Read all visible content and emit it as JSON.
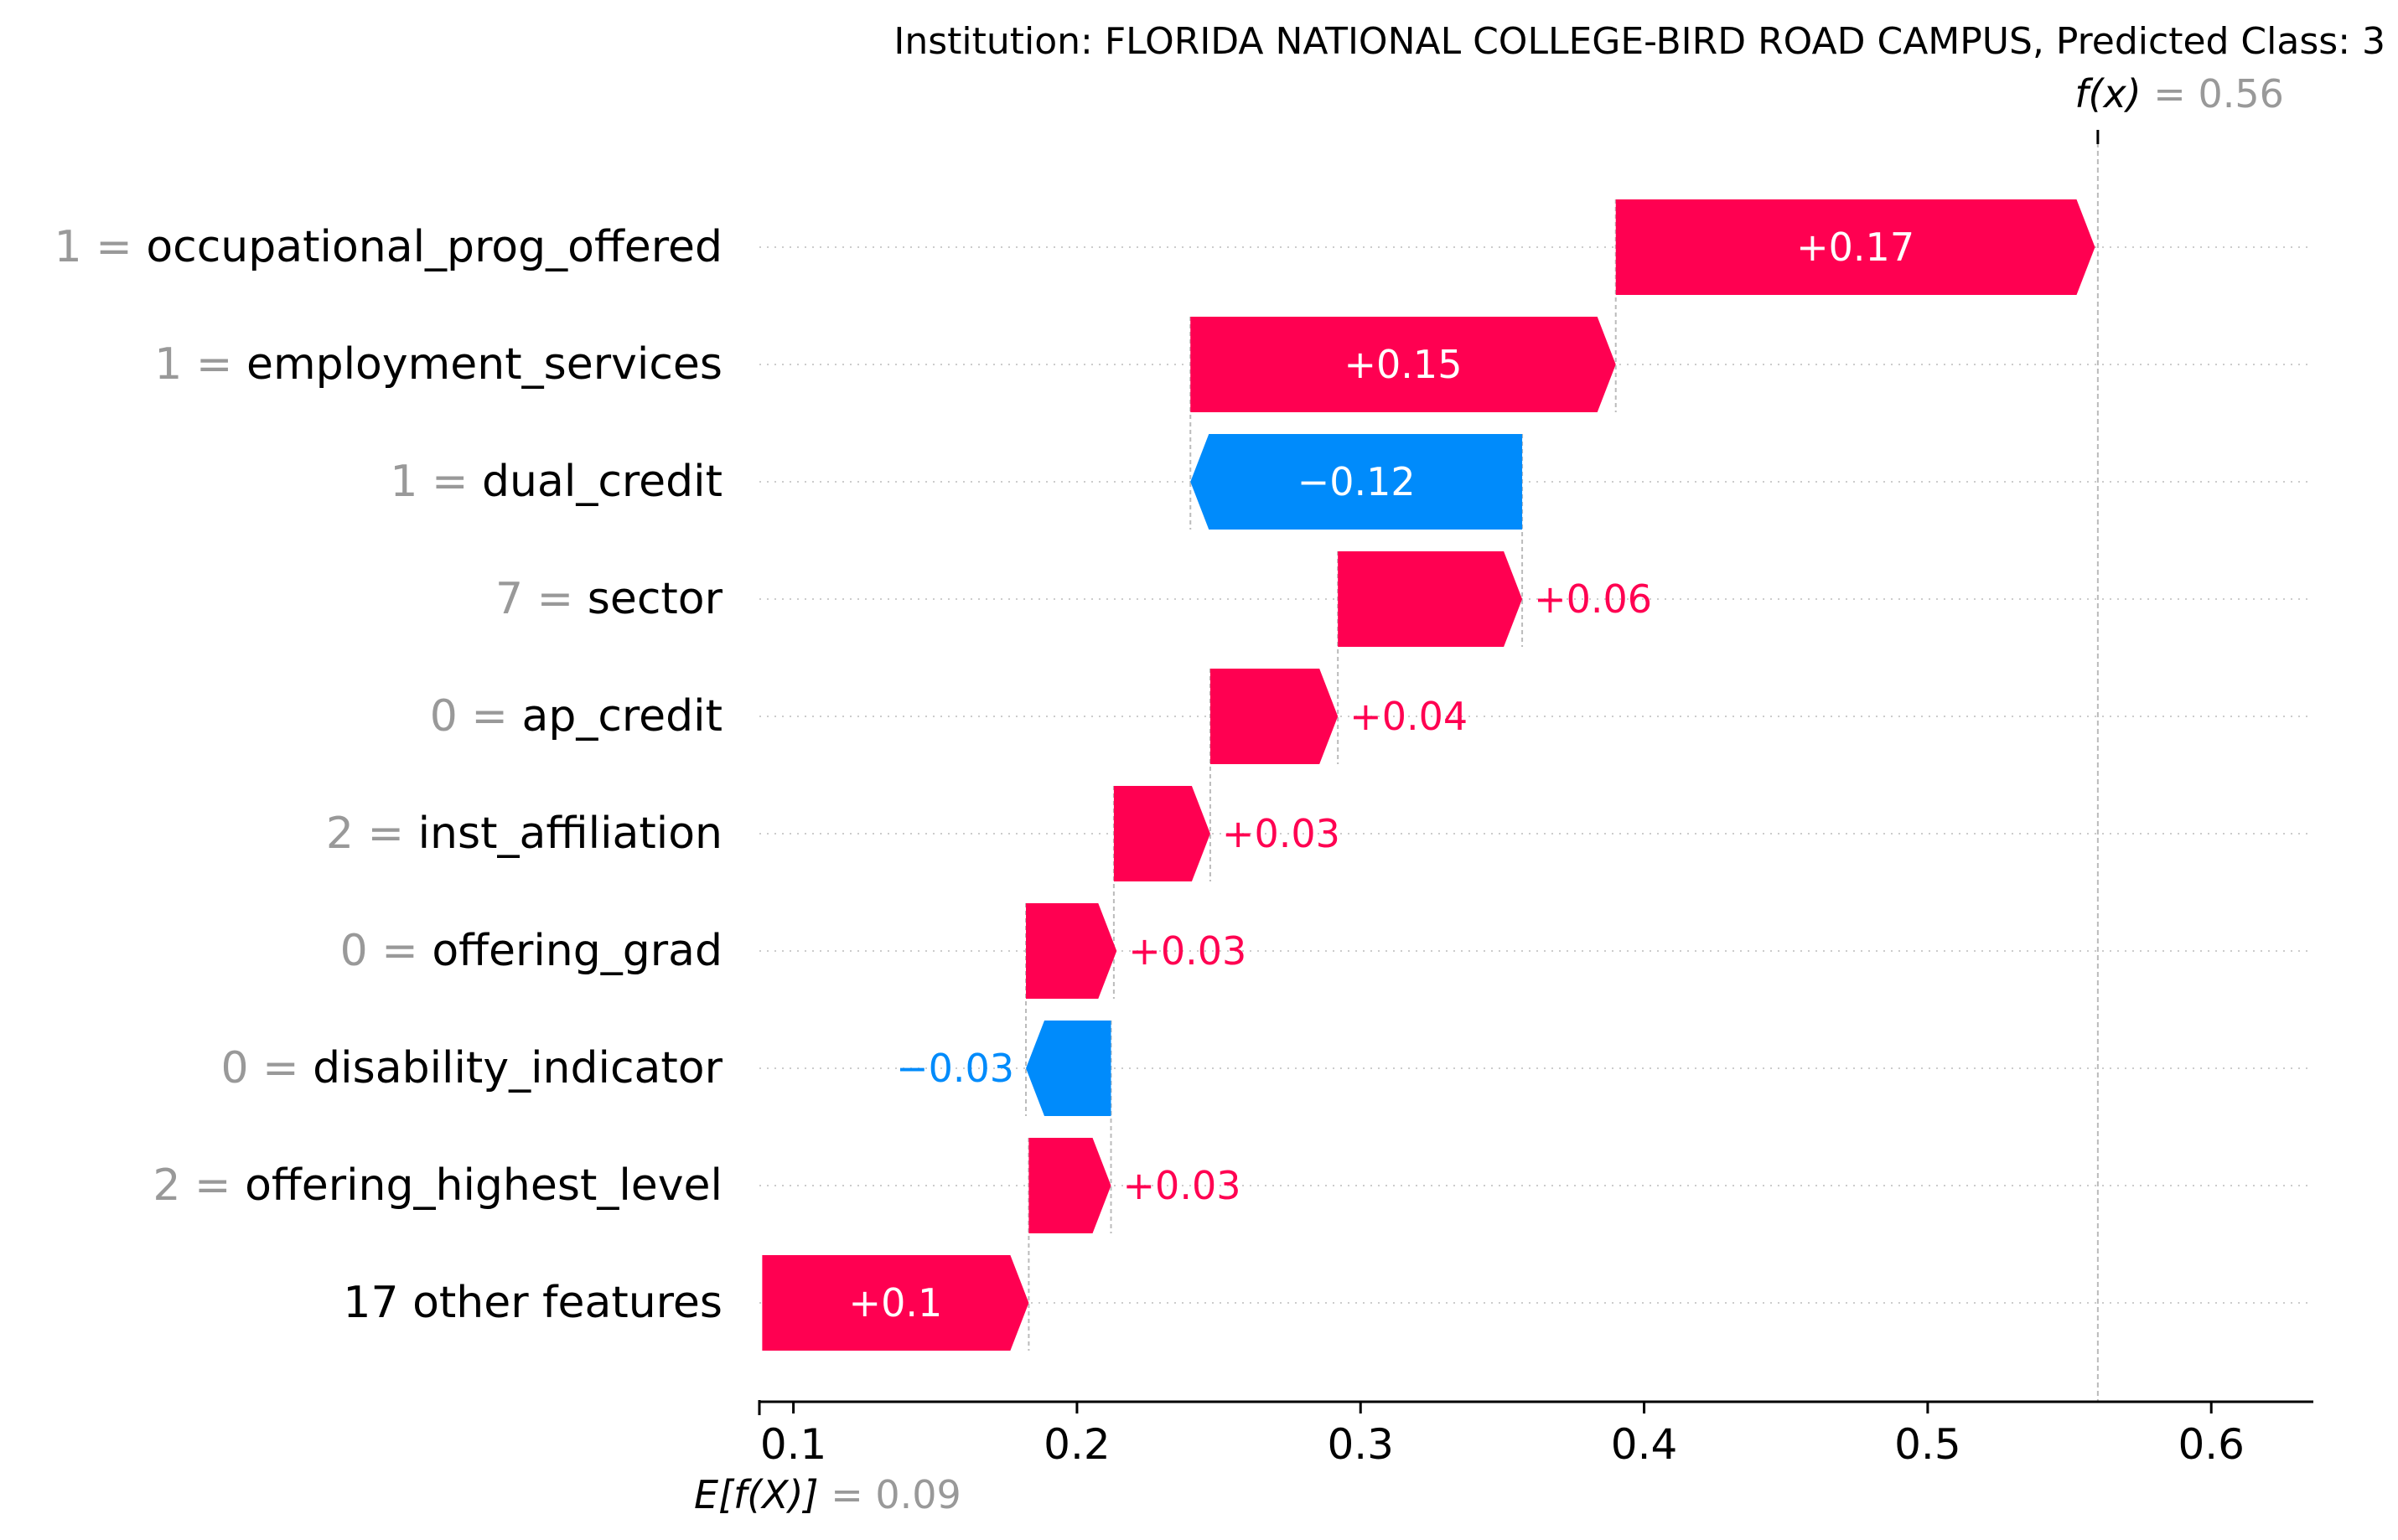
{
  "title": "Institution: FLORIDA NATIONAL COLLEGE-BIRD ROAD CAMPUS, Predicted Class: 3",
  "colors": {
    "positive": "#ff0051",
    "negative": "#008bfb",
    "feature_value": "#999999",
    "text": "#000000"
  },
  "chart_data": {
    "type": "waterfall",
    "title": "Institution: FLORIDA NATIONAL COLLEGE-BIRD ROAD CAMPUS, Predicted Class: 3",
    "base_value": 0.09,
    "output_value": 0.56,
    "base_label_prefix": "E[f(X)]",
    "base_label_value": "= 0.09",
    "output_label_prefix": "f(x)",
    "output_label_value": "= 0.56",
    "xlim": [
      0.088,
      0.636
    ],
    "xticks": [
      0.1,
      0.2,
      0.3,
      0.4,
      0.5,
      0.6
    ],
    "xtick_labels": [
      "0.1",
      "0.2",
      "0.3",
      "0.4",
      "0.5",
      "0.6"
    ],
    "features": [
      {
        "value": "1",
        "name": "occupational_prog_offered",
        "start": 0.39,
        "end": 0.559,
        "label": "+0.17"
      },
      {
        "value": "1",
        "name": "employment_services",
        "start": 0.24,
        "end": 0.39,
        "label": "+0.15"
      },
      {
        "value": "1",
        "name": "dual_credit",
        "start": 0.357,
        "end": 0.24,
        "label": "−0.12"
      },
      {
        "value": "7",
        "name": "sector",
        "start": 0.292,
        "end": 0.357,
        "label": "+0.06"
      },
      {
        "value": "0",
        "name": "ap_credit",
        "start": 0.247,
        "end": 0.292,
        "label": "+0.04"
      },
      {
        "value": "2",
        "name": "inst_affiliation",
        "start": 0.213,
        "end": 0.247,
        "label": "+0.03"
      },
      {
        "value": "0",
        "name": "offering_grad",
        "start": 0.182,
        "end": 0.214,
        "label": "+0.03"
      },
      {
        "value": "0",
        "name": "disability_indicator",
        "start": 0.212,
        "end": 0.182,
        "label": "−0.03"
      },
      {
        "value": "2",
        "name": "offering_highest_level",
        "start": 0.183,
        "end": 0.212,
        "label": "+0.03"
      },
      {
        "value": "",
        "name": "17 other features",
        "start": 0.089,
        "end": 0.183,
        "label": "+0.1"
      }
    ]
  }
}
